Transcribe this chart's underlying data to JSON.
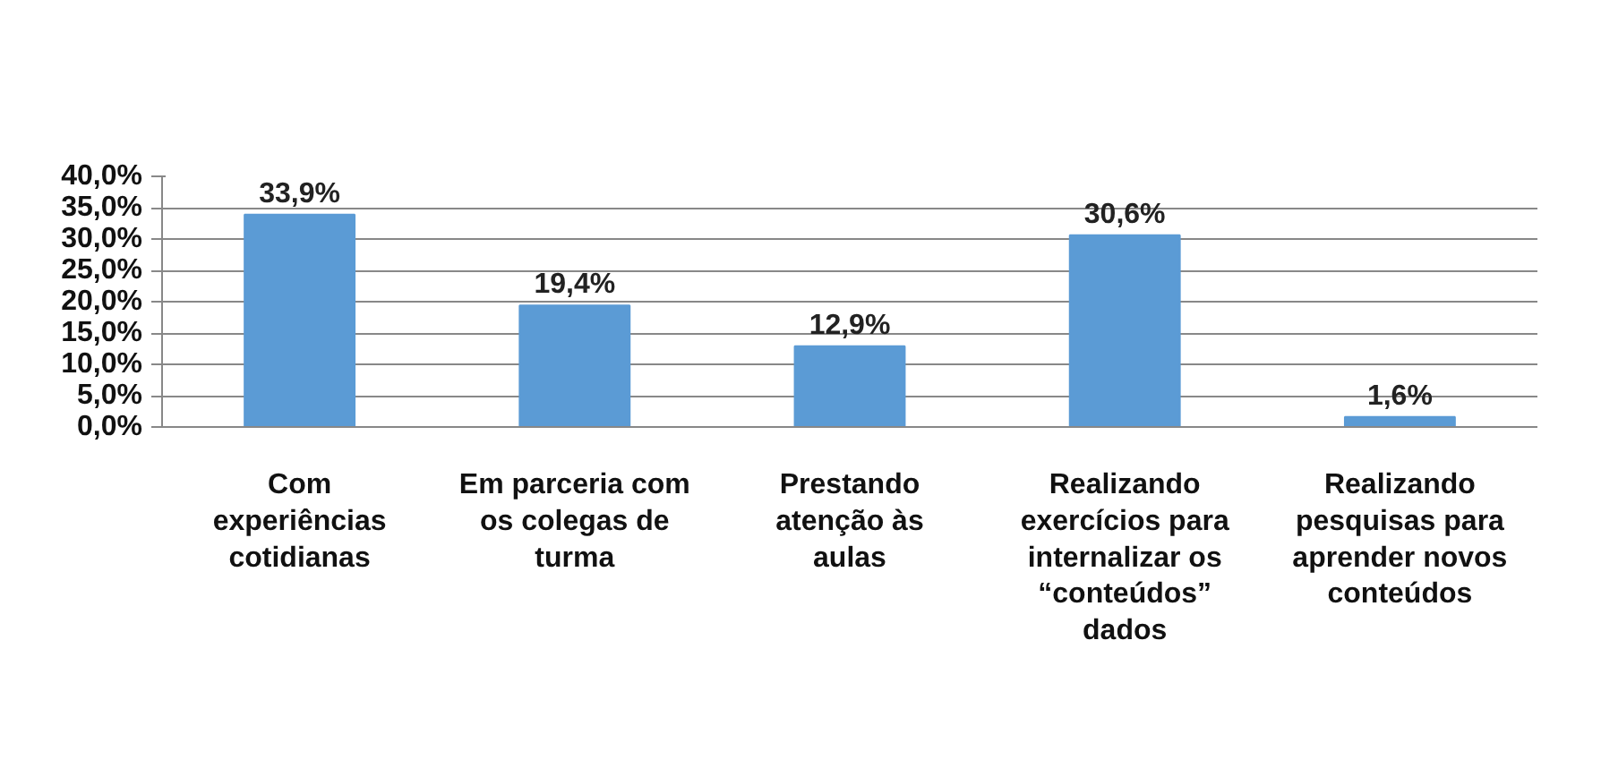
{
  "chart_data": {
    "type": "bar",
    "categories": [
      "Com experiências cotidianas",
      "Em parceria com os colegas de turma",
      "Prestando atenção às aulas",
      "Realizando exercícios para internalizar os “conteúdos” dados",
      "Realizando pesquisas para aprender novos conteúdos"
    ],
    "values": [
      33.9,
      19.4,
      12.9,
      30.6,
      1.6
    ],
    "value_labels": [
      "33,9%",
      "19,4%",
      "12,9%",
      "30,6%",
      "1,6%"
    ],
    "color": "#5b9bd5",
    "ylim": [
      0,
      40
    ],
    "yticks": [
      {
        "value": 0,
        "label": "0,0%"
      },
      {
        "value": 5,
        "label": "5,0%"
      },
      {
        "value": 10,
        "label": "10,0%"
      },
      {
        "value": 15,
        "label": "15,0%"
      },
      {
        "value": 20,
        "label": "20,0%"
      },
      {
        "value": 25,
        "label": "25,0%"
      },
      {
        "value": 30,
        "label": "30,0%"
      },
      {
        "value": 35,
        "label": "35,0%"
      },
      {
        "value": 40,
        "label": "40,0%"
      }
    ],
    "grid": "y"
  }
}
